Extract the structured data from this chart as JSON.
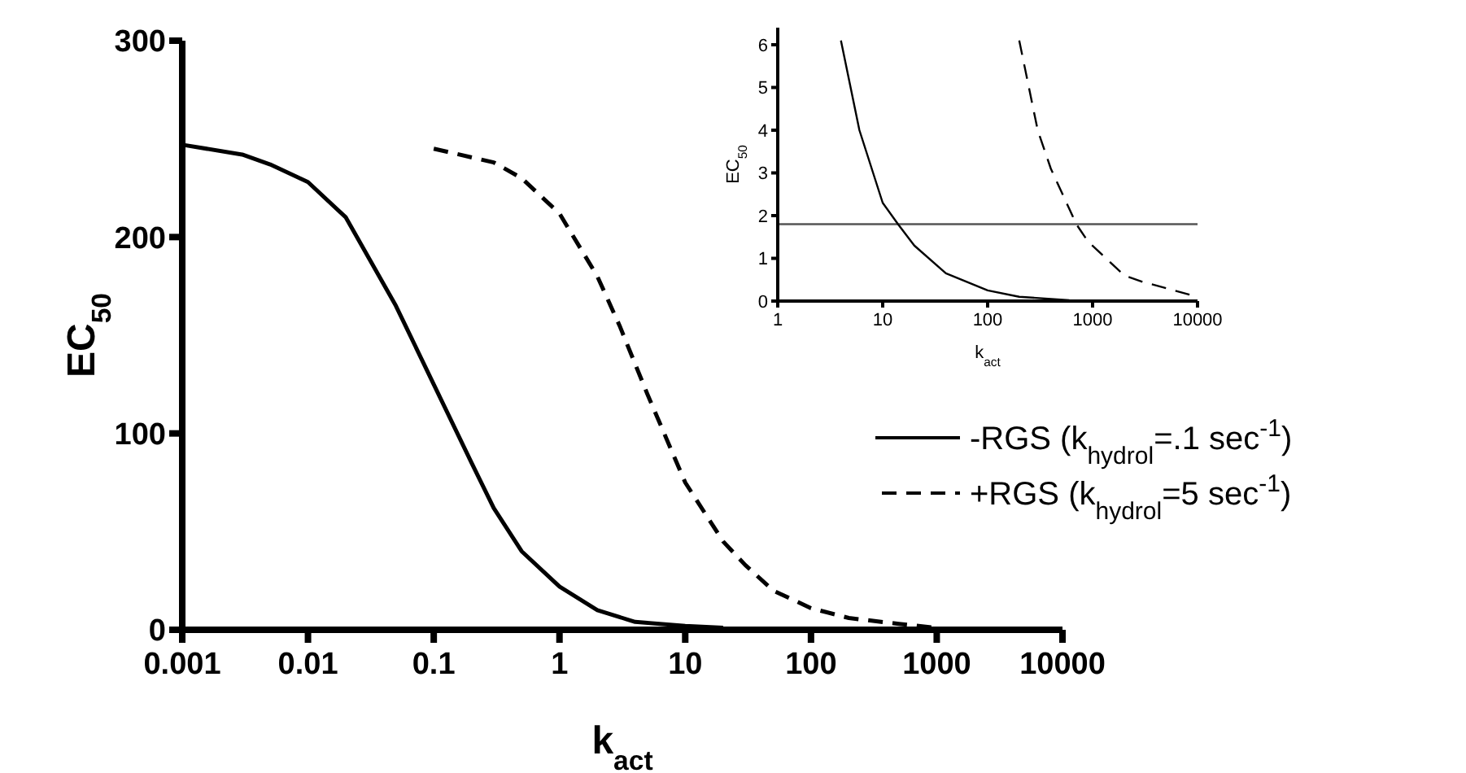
{
  "chart_data": [
    {
      "type": "line",
      "xlabel": "k$_{act}$",
      "ylabel": "EC$_{50}$",
      "log": "x",
      "xlim": [
        0.001,
        10000
      ],
      "xticks": [
        0.001,
        0.01,
        0.1,
        1,
        10,
        100,
        1000,
        10000
      ],
      "ylim": [
        0,
        300
      ],
      "yticks": [
        0,
        100,
        200,
        300
      ],
      "grid": false,
      "legend": "right",
      "series": [
        {
          "name": "-RGS (k$_{hydrol}$=.1 sec$^{-1}$)",
          "color": "#000000",
          "line_style": "solid",
          "x": [
            0.001,
            0.003,
            0.005,
            0.01,
            0.02,
            0.05,
            0.1,
            0.2,
            0.3,
            0.5,
            1,
            2,
            4,
            10,
            20
          ],
          "values": [
            247,
            242,
            237,
            228,
            210,
            165,
            125,
            85,
            62,
            40,
            22,
            10,
            4,
            2,
            1
          ]
        },
        {
          "name": "+RGS (k$_{hydrol}$=5 sec$^{-1}$)",
          "color": "#000000",
          "line_style": "dashed",
          "x": [
            0.1,
            0.3,
            0.5,
            1,
            2,
            3,
            5,
            10,
            20,
            30,
            50,
            100,
            200,
            500,
            1000
          ],
          "values": [
            245,
            238,
            230,
            212,
            180,
            155,
            120,
            75,
            45,
            33,
            20,
            11,
            6,
            3,
            1
          ]
        }
      ]
    },
    {
      "type": "line",
      "xlabel": "k$_{act}$",
      "ylabel": "EC$_{50}$",
      "log": "x",
      "xlim": [
        1,
        10000
      ],
      "xticks": [
        1,
        10,
        100,
        1000,
        10000
      ],
      "ylim": [
        0,
        6.4
      ],
      "yticks": [
        0,
        1,
        2,
        3,
        4,
        5,
        6
      ],
      "grid": false,
      "legend": false,
      "ref_lines": [
        {
          "axis": "y",
          "value": 1.8,
          "color": "#555555"
        }
      ],
      "series": [
        {
          "color": "#000000",
          "line_style": "solid",
          "x": [
            4,
            6,
            10,
            14,
            20,
            40,
            100,
            200,
            600
          ],
          "values": [
            6.1,
            4,
            2.3,
            1.8,
            1.3,
            0.65,
            0.25,
            0.1,
            0.02
          ]
        },
        {
          "color": "#000000",
          "line_style": "dashed",
          "x": [
            200,
            300,
            400,
            700,
            900,
            2000,
            3000,
            10000
          ],
          "values": [
            6.1,
            4,
            3.1,
            1.8,
            1.4,
            0.6,
            0.45,
            0.1
          ]
        }
      ]
    }
  ]
}
